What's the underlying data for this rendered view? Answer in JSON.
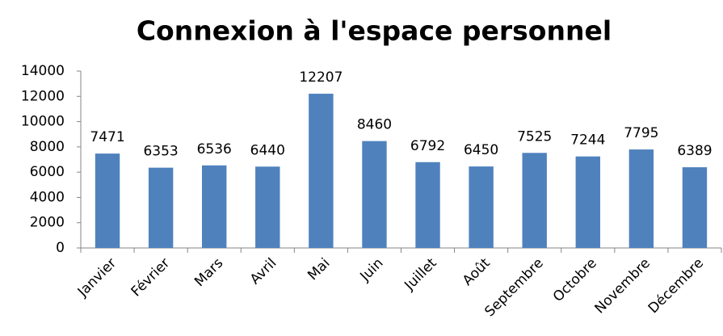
{
  "chart_data": {
    "type": "bar",
    "title": "Connexion à l'espace personnel",
    "categories": [
      "Janvier",
      "Février",
      "Mars",
      "Avril",
      "Mai",
      "Juin",
      "Juillet",
      "Août",
      "Septembre",
      "Octobre",
      "Novembre",
      "Décembre"
    ],
    "values": [
      7471,
      6353,
      6536,
      6440,
      12207,
      8460,
      6792,
      6450,
      7525,
      7244,
      7795,
      6389
    ],
    "color": "#4f81bd",
    "ylim": [
      0,
      14000
    ],
    "yticks": [
      0,
      2000,
      4000,
      6000,
      8000,
      10000,
      12000,
      14000
    ],
    "grid": false
  }
}
